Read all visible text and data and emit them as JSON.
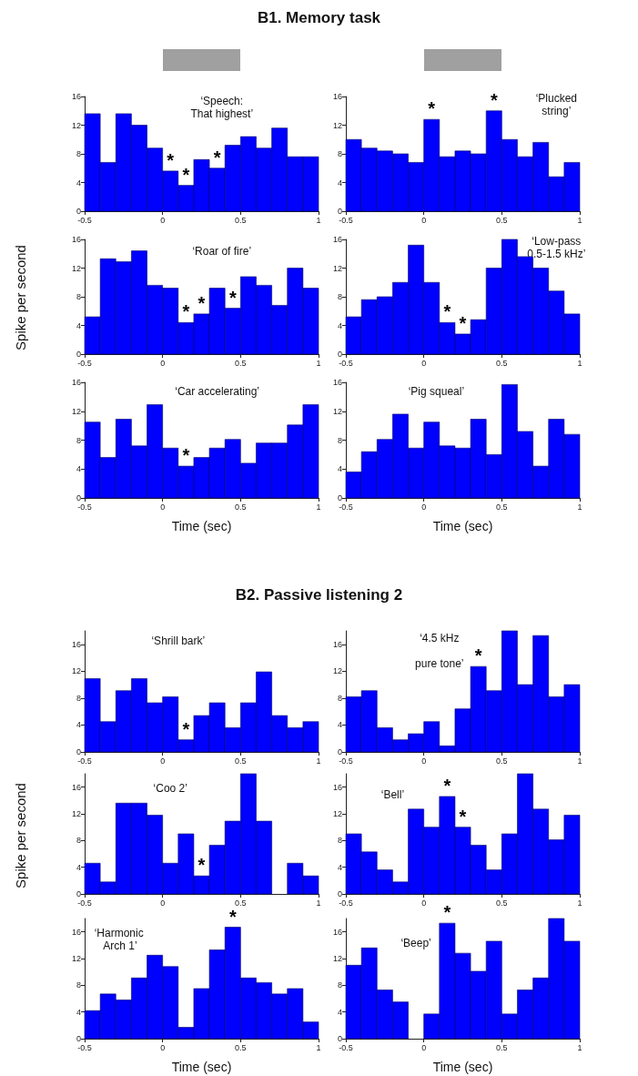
{
  "chart_data": [
    {
      "type": "histogram",
      "title": "B1. Memory task",
      "subtitle": "‘Speech:\nThat highest’",
      "ylabel": "Spike per second",
      "bins": [
        -0.5,
        -0.4,
        -0.3,
        -0.2,
        -0.1,
        0,
        0.1,
        0.2,
        0.3,
        0.4,
        0.5,
        0.6,
        0.7,
        0.8,
        0.9,
        1
      ],
      "values": [
        13.6,
        6.8,
        13.6,
        12.0,
        8.8,
        5.6,
        3.6,
        7.2,
        6.0,
        9.2,
        10.4,
        8.8,
        11.6,
        7.6,
        7.6
      ],
      "color": "#0000ff",
      "xlim": [
        -0.5,
        1
      ],
      "xticks": [
        -0.5,
        0,
        0.5,
        1
      ],
      "ylim": [
        0,
        16
      ],
      "yticks": [
        0,
        4,
        8,
        12,
        16
      ],
      "annotations": [
        {
          "text": "*",
          "x": 0.05,
          "y": 5.6
        },
        {
          "text": "*",
          "x": 0.15,
          "y": 3.6
        },
        {
          "text": "*",
          "x": 0.35,
          "y": 6.0
        }
      ]
    },
    {
      "type": "histogram",
      "subtitle": "‘Plucked\nstring’",
      "bins": [
        -0.5,
        -0.4,
        -0.3,
        -0.2,
        -0.1,
        0,
        0.1,
        0.2,
        0.3,
        0.4,
        0.5,
        0.6,
        0.7,
        0.8,
        0.9,
        1
      ],
      "values": [
        10.0,
        8.8,
        8.4,
        8.0,
        6.8,
        12.8,
        7.6,
        8.4,
        8.0,
        14.0,
        10.0,
        7.6,
        9.6,
        4.8,
        6.8
      ],
      "color": "#0000ff",
      "xlim": [
        -0.5,
        1
      ],
      "xticks": [
        -0.5,
        0,
        0.5,
        1
      ],
      "ylim": [
        0,
        16
      ],
      "yticks": [
        0,
        4,
        8,
        12,
        16
      ],
      "annotations": [
        {
          "text": "*",
          "x": 0.05,
          "y": 12.8
        },
        {
          "text": "*",
          "x": 0.45,
          "y": 14.0
        }
      ]
    },
    {
      "type": "histogram",
      "subtitle": "‘Roar of fire’",
      "bins": [
        -0.5,
        -0.4,
        -0.3,
        -0.2,
        -0.1,
        0,
        0.1,
        0.2,
        0.3,
        0.4,
        0.5,
        0.6,
        0.7,
        0.8,
        0.9,
        1
      ],
      "values": [
        5.2,
        13.3,
        12.9,
        14.4,
        9.6,
        9.2,
        4.4,
        5.6,
        9.2,
        6.4,
        10.8,
        9.6,
        6.8,
        12.0,
        9.2
      ],
      "color": "#0000ff",
      "xlim": [
        -0.5,
        1
      ],
      "xticks": [
        -0.5,
        0,
        0.5,
        1
      ],
      "ylim": [
        0,
        16
      ],
      "yticks": [
        0,
        4,
        8,
        12,
        16
      ],
      "annotations": [
        {
          "text": "*",
          "x": 0.15,
          "y": 4.4
        },
        {
          "text": "*",
          "x": 0.25,
          "y": 5.6
        },
        {
          "text": "*",
          "x": 0.45,
          "y": 6.4
        }
      ]
    },
    {
      "type": "histogram",
      "subtitle": "‘Low-pass\n0.5-1.5 kHz’",
      "bins": [
        -0.5,
        -0.4,
        -0.3,
        -0.2,
        -0.1,
        0,
        0.1,
        0.2,
        0.3,
        0.4,
        0.5,
        0.6,
        0.7,
        0.8,
        0.9,
        1
      ],
      "values": [
        5.2,
        7.6,
        8.0,
        10.0,
        15.2,
        10.0,
        4.4,
        2.8,
        4.8,
        12.0,
        16.0,
        13.6,
        12.0,
        8.8,
        5.6
      ],
      "color": "#0000ff",
      "xlim": [
        -0.5,
        1
      ],
      "xticks": [
        -0.5,
        0,
        0.5,
        1
      ],
      "ylim": [
        0,
        16
      ],
      "yticks": [
        0,
        4,
        8,
        12,
        16
      ],
      "annotations": [
        {
          "text": "*",
          "x": 0.15,
          "y": 4.4
        },
        {
          "text": "*",
          "x": 0.25,
          "y": 2.8
        }
      ]
    },
    {
      "type": "histogram",
      "subtitle": "‘Car accelerating’",
      "xlabel": "Time (sec)",
      "bins": [
        -0.5,
        -0.4,
        -0.3,
        -0.2,
        -0.1,
        0,
        0.1,
        0.2,
        0.3,
        0.4,
        0.5,
        0.6,
        0.7,
        0.8,
        0.9,
        1
      ],
      "values": [
        10.5,
        5.6,
        10.9,
        7.2,
        12.9,
        6.9,
        4.4,
        5.6,
        6.9,
        8.1,
        4.8,
        7.6,
        7.6,
        10.1,
        12.9
      ],
      "color": "#0000ff",
      "xlim": [
        -0.5,
        1
      ],
      "xticks": [
        -0.5,
        0,
        0.5,
        1
      ],
      "ylim": [
        0,
        16
      ],
      "yticks": [
        0,
        4,
        8,
        12,
        16
      ],
      "annotations": [
        {
          "text": "*",
          "x": 0.15,
          "y": 4.4
        }
      ]
    },
    {
      "type": "histogram",
      "subtitle": "‘Pig squeal’",
      "xlabel": "Time (sec)",
      "bins": [
        -0.5,
        -0.4,
        -0.3,
        -0.2,
        -0.1,
        0,
        0.1,
        0.2,
        0.3,
        0.4,
        0.5,
        0.6,
        0.7,
        0.8,
        0.9,
        1
      ],
      "values": [
        3.6,
        6.4,
        8.1,
        11.6,
        6.9,
        10.5,
        7.2,
        6.9,
        10.9,
        6.0,
        15.7,
        9.2,
        4.4,
        10.9,
        8.8
      ],
      "color": "#0000ff",
      "xlim": [
        -0.5,
        1
      ],
      "xticks": [
        -0.5,
        0,
        0.5,
        1
      ],
      "ylim": [
        0,
        16
      ],
      "yticks": [
        0,
        4,
        8,
        12,
        16
      ]
    },
    {
      "type": "histogram",
      "title": "B2. Passive listening 2",
      "subtitle": "‘Shrill bark’",
      "ylabel": "Spike per second",
      "bins": [
        -0.5,
        -0.4,
        -0.3,
        -0.2,
        -0.1,
        0,
        0.1,
        0.2,
        0.3,
        0.4,
        0.5,
        0.6,
        0.7,
        0.8,
        0.9,
        1
      ],
      "values": [
        10.9,
        4.5,
        9.1,
        10.9,
        7.3,
        8.2,
        1.8,
        5.4,
        7.3,
        3.6,
        7.3,
        11.9,
        5.4,
        3.6,
        4.5
      ],
      "color": "#0000ff",
      "xlim": [
        -0.5,
        1
      ],
      "xticks": [
        -0.5,
        0,
        0.5,
        1
      ],
      "ylim": [
        0,
        18
      ],
      "yticks": [
        0,
        4,
        8,
        12,
        16
      ],
      "annotations": [
        {
          "text": "*",
          "x": 0.15,
          "y": 1.8
        }
      ]
    },
    {
      "type": "histogram",
      "subtitle": "‘4.5 kHz\n\npure tone’",
      "bins": [
        -0.5,
        -0.4,
        -0.3,
        -0.2,
        -0.1,
        0,
        0.1,
        0.2,
        0.3,
        0.4,
        0.5,
        0.6,
        0.7,
        0.8,
        0.9,
        1
      ],
      "values": [
        8.2,
        9.1,
        3.6,
        1.8,
        2.7,
        4.5,
        0.9,
        6.4,
        12.7,
        9.1,
        18,
        10.0,
        17.3,
        8.2,
        10.0
      ],
      "color": "#0000ff",
      "xlim": [
        -0.5,
        1
      ],
      "xticks": [
        -0.5,
        0,
        0.5,
        1
      ],
      "ylim": [
        0,
        18
      ],
      "yticks": [
        0,
        4,
        8,
        12,
        16
      ],
      "annotations": [
        {
          "text": "*",
          "x": 0.35,
          "y": 12.7
        }
      ]
    },
    {
      "type": "histogram",
      "subtitle": "‘Coo 2’",
      "bins": [
        -0.5,
        -0.4,
        -0.3,
        -0.2,
        -0.1,
        0,
        0.1,
        0.2,
        0.3,
        0.4,
        0.5,
        0.6,
        0.7,
        0.8,
        0.9,
        1
      ],
      "values": [
        4.6,
        1.8,
        13.6,
        13.6,
        11.8,
        4.6,
        9.0,
        2.7,
        7.3,
        10.9,
        18,
        10.9,
        0,
        4.6,
        2.7
      ],
      "color": "#0000ff",
      "xlim": [
        -0.5,
        1
      ],
      "xticks": [
        -0.5,
        0,
        0.5,
        1
      ],
      "ylim": [
        0,
        18
      ],
      "yticks": [
        0,
        4,
        8,
        12,
        16
      ],
      "annotations": [
        {
          "text": "*",
          "x": 0.25,
          "y": 2.7
        }
      ]
    },
    {
      "type": "histogram",
      "subtitle": "‘Bell’",
      "bins": [
        -0.5,
        -0.4,
        -0.3,
        -0.2,
        -0.1,
        0,
        0.1,
        0.2,
        0.3,
        0.4,
        0.5,
        0.6,
        0.7,
        0.8,
        0.9,
        1
      ],
      "values": [
        9.0,
        6.3,
        3.6,
        1.8,
        12.7,
        10.0,
        14.6,
        10.0,
        7.3,
        3.6,
        9.0,
        18,
        12.7,
        8.1,
        11.8
      ],
      "color": "#0000ff",
      "xlim": [
        -0.5,
        1
      ],
      "xticks": [
        -0.5,
        0,
        0.5,
        1
      ],
      "ylim": [
        0,
        18
      ],
      "yticks": [
        0,
        4,
        8,
        12,
        16
      ],
      "annotations": [
        {
          "text": "*",
          "x": 0.15,
          "y": 14.6
        },
        {
          "text": "*",
          "x": 0.25,
          "y": 10.0
        }
      ]
    },
    {
      "type": "histogram",
      "subtitle": "‘Harmonic\n Arch 1’",
      "xlabel": "Time (sec)",
      "bins": [
        -0.5,
        -0.4,
        -0.3,
        -0.2,
        -0.1,
        0,
        0.1,
        0.2,
        0.3,
        0.4,
        0.5,
        0.6,
        0.7,
        0.8,
        0.9,
        1
      ],
      "values": [
        4.2,
        6.7,
        5.8,
        9.1,
        12.5,
        10.8,
        1.7,
        7.5,
        13.3,
        16.7,
        9.1,
        8.4,
        6.7,
        7.5,
        2.5
      ],
      "color": "#0000ff",
      "xlim": [
        -0.5,
        1
      ],
      "xticks": [
        -0.5,
        0,
        0.5,
        1
      ],
      "ylim": [
        0,
        18
      ],
      "yticks": [
        0,
        4,
        8,
        12,
        16
      ],
      "annotations": [
        {
          "text": "*",
          "x": 0.45,
          "y": 16.7
        }
      ]
    },
    {
      "type": "histogram",
      "subtitle": "‘Beep’",
      "xlabel": "Time (sec)",
      "bins": [
        -0.5,
        -0.4,
        -0.3,
        -0.2,
        -0.1,
        0,
        0.1,
        0.2,
        0.3,
        0.4,
        0.5,
        0.6,
        0.7,
        0.8,
        0.9,
        1
      ],
      "values": [
        11.0,
        13.6,
        7.3,
        5.5,
        0,
        3.7,
        17.3,
        12.8,
        10.1,
        14.6,
        3.7,
        7.3,
        9.1,
        18,
        14.6
      ],
      "color": "#0000ff",
      "xlim": [
        -0.5,
        1
      ],
      "xticks": [
        -0.5,
        0,
        0.5,
        1
      ],
      "ylim": [
        0,
        18
      ],
      "yticks": [
        0,
        4,
        8,
        12,
        16
      ],
      "annotations": [
        {
          "text": "*",
          "x": 0.15,
          "y": 17.3
        }
      ]
    }
  ]
}
